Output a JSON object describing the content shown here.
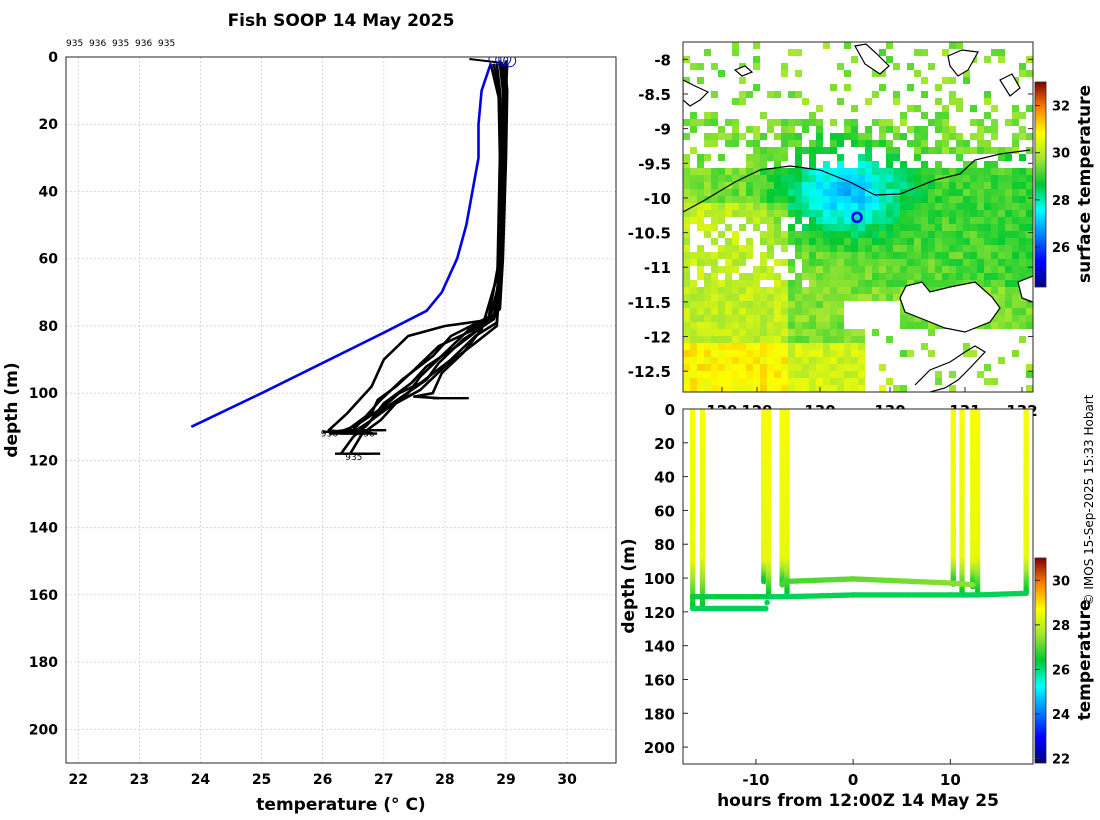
{
  "credit": "© IMOS 15-Sep-2025 15:33 Hobart",
  "chart_data": [
    {
      "id": "profile",
      "type": "line",
      "title": "Fish SOOP 14 May 2025",
      "xlabel": "temperature (° C)",
      "ylabel": "depth (m)",
      "xlim": [
        21.8,
        30.8
      ],
      "ylim": [
        210,
        0
      ],
      "xticks": [
        22,
        23,
        24,
        25,
        26,
        27,
        28,
        29,
        30
      ],
      "yticks": [
        0,
        20,
        40,
        60,
        80,
        100,
        120,
        140,
        160,
        180,
        200
      ],
      "grid": true,
      "top_labels": [
        "935",
        "936",
        "935",
        "936",
        "935"
      ],
      "climatology": {
        "name": "climatology",
        "color": "#0000e6",
        "points": [
          [
            23.85,
            110
          ],
          [
            25.0,
            100
          ],
          [
            26.0,
            91
          ],
          [
            27.0,
            82
          ],
          [
            27.7,
            75.5
          ],
          [
            27.95,
            70
          ],
          [
            28.2,
            60
          ],
          [
            28.35,
            50
          ],
          [
            28.45,
            40
          ],
          [
            28.55,
            30
          ],
          [
            28.55,
            20
          ],
          [
            28.6,
            10
          ],
          [
            28.75,
            2
          ]
        ]
      },
      "profiles": [
        {
          "id": "935",
          "points": [
            [
              28.98,
              2
            ],
            [
              29.02,
              10
            ],
            [
              29.0,
              30
            ],
            [
              28.95,
              60
            ],
            [
              28.9,
              75
            ],
            [
              28.6,
              80
            ],
            [
              27.9,
              86
            ],
            [
              27.5,
              93
            ],
            [
              27.2,
              98
            ],
            [
              26.9,
              102
            ],
            [
              26.8,
              106
            ],
            [
              26.5,
              110
            ],
            [
              26.2,
              112
            ]
          ]
        },
        {
          "id": "936",
          "points": [
            [
              28.95,
              2
            ],
            [
              28.98,
              10
            ],
            [
              28.96,
              30
            ],
            [
              28.92,
              62
            ],
            [
              28.85,
              77
            ],
            [
              28.4,
              81
            ],
            [
              28.0,
              88
            ],
            [
              27.6,
              95
            ],
            [
              27.4,
              100
            ],
            [
              27.1,
              104
            ],
            [
              26.8,
              108
            ],
            [
              26.55,
              111
            ]
          ]
        },
        {
          "id": "935",
          "points": [
            [
              28.9,
              2
            ],
            [
              28.95,
              10
            ],
            [
              28.92,
              30
            ],
            [
              28.9,
              63
            ],
            [
              28.8,
              78
            ],
            [
              28.3,
              84
            ],
            [
              27.9,
              91
            ],
            [
              27.7,
              96
            ],
            [
              27.3,
              101
            ],
            [
              26.9,
              106
            ],
            [
              26.7,
              110
            ],
            [
              26.4,
              112
            ]
          ]
        },
        {
          "id": "936",
          "points": [
            [
              28.85,
              2
            ],
            [
              28.9,
              10
            ],
            [
              28.9,
              30
            ],
            [
              28.88,
              61
            ],
            [
              28.7,
              79
            ],
            [
              28.2,
              86
            ],
            [
              27.7,
              92
            ],
            [
              27.45,
              97
            ],
            [
              27.0,
              103
            ],
            [
              26.75,
              109
            ],
            [
              26.5,
              113
            ],
            [
              26.3,
              118
            ]
          ]
        },
        {
          "id": "935",
          "points": [
            [
              28.8,
              2
            ],
            [
              28.9,
              12
            ],
            [
              28.92,
              30
            ],
            [
              28.9,
              64
            ],
            [
              28.85,
              80
            ],
            [
              28.5,
              85
            ],
            [
              28.0,
              92
            ],
            [
              27.6,
              99
            ],
            [
              27.2,
              103
            ],
            [
              26.95,
              108
            ],
            [
              26.65,
              112
            ],
            [
              26.45,
              118
            ]
          ]
        },
        {
          "id": "936",
          "points": [
            [
              29.02,
              2
            ],
            [
              29.0,
              10
            ],
            [
              28.95,
              40
            ],
            [
              28.9,
              66
            ],
            [
              28.75,
              77
            ],
            [
              28.1,
              83
            ],
            [
              27.8,
              89
            ],
            [
              27.3,
              96
            ],
            [
              26.95,
              102
            ],
            [
              26.7,
              107
            ],
            [
              26.4,
              111
            ],
            [
              26.1,
              111.5
            ]
          ]
        },
        {
          "id": "935",
          "points": [
            [
              28.75,
              2
            ],
            [
              28.88,
              12
            ],
            [
              28.9,
              30
            ],
            [
              28.86,
              65
            ],
            [
              28.6,
              81
            ],
            [
              28.3,
              88
            ],
            [
              27.95,
              94
            ],
            [
              27.8,
              100
            ],
            [
              27.5,
              101
            ],
            [
              27.9,
              101.5
            ]
          ]
        },
        {
          "id": "936",
          "points": [
            [
              28.9,
              1
            ],
            [
              28.96,
              8
            ],
            [
              28.95,
              35
            ],
            [
              28.9,
              62
            ],
            [
              28.8,
              78
            ],
            [
              28.0,
              80
            ],
            [
              27.4,
              83
            ],
            [
              27.0,
              90
            ],
            [
              26.8,
              98
            ],
            [
              26.4,
              106
            ],
            [
              26.1,
              111
            ],
            [
              26.3,
              111.5
            ]
          ]
        },
        {
          "id": "935",
          "points": [
            [
              29.0,
              1
            ],
            [
              29.0,
              15
            ],
            [
              28.95,
              45
            ],
            [
              28.9,
              68
            ],
            [
              28.85,
              79
            ],
            [
              28.5,
              83
            ],
            [
              28.1,
              90
            ],
            [
              27.6,
              97
            ],
            [
              27.25,
              100
            ],
            [
              27.0,
              104
            ],
            [
              26.6,
              109
            ],
            [
              26.5,
              111
            ]
          ]
        }
      ],
      "bottom_labels": [
        {
          "text": "936",
          "t": 26.1,
          "d": 112
        },
        {
          "text": "936",
          "t": 26.7,
          "d": 112
        },
        {
          "text": "935",
          "t": 26.5,
          "d": 119
        }
      ],
      "surface_markers": [
        [
          28.82,
          0.8
        ],
        [
          28.93,
          0.9
        ],
        [
          28.98,
          0.5
        ],
        [
          29.06,
          1.1
        ]
      ]
    },
    {
      "id": "map",
      "type": "heatmap",
      "ylim": [
        -12.8,
        -7.75
      ],
      "yticks": [
        -8,
        -8.5,
        -9,
        -9.5,
        -10,
        -10.5,
        -11,
        -11.5,
        -12,
        -12.5
      ],
      "xtick_labels": [
        "129",
        "129",
        "130",
        "130",
        "131",
        "132"
      ],
      "colorbar": {
        "label": "surface temperature",
        "min": 24.3,
        "max": 33.0,
        "ticks": [
          26,
          28,
          30,
          32
        ]
      },
      "marker": {
        "lat": -10.28,
        "lon": 130.25
      }
    },
    {
      "id": "section",
      "type": "scatter",
      "xlabel": "hours from 12:00Z 14 May 25",
      "ylabel": "depth (m)",
      "xlim": [
        -17.5,
        18.5
      ],
      "ylim": [
        210,
        0
      ],
      "xticks": [
        -10,
        0,
        10
      ],
      "yticks": [
        0,
        20,
        40,
        60,
        80,
        100,
        120,
        140,
        160,
        180,
        200
      ],
      "colorbar": {
        "label": "temperature",
        "min": 21.8,
        "max": 31.0,
        "ticks": [
          22,
          24,
          26,
          28,
          30
        ]
      },
      "casts": [
        {
          "x": -16.5,
          "bottom": 118,
          "thermocline": 90
        },
        {
          "x": -15.5,
          "bottom": 118,
          "thermocline": 88
        },
        {
          "x": -9.2,
          "bottom": 102,
          "thermocline": 90
        },
        {
          "x": -8.7,
          "bottom": 111,
          "thermocline": 90
        },
        {
          "x": -7.3,
          "bottom": 104,
          "thermocline": 89
        },
        {
          "x": -6.8,
          "bottom": 110,
          "thermocline": 88
        },
        {
          "x": 10.3,
          "bottom": 104,
          "thermocline": 88
        },
        {
          "x": 11.2,
          "bottom": 110,
          "thermocline": 89
        },
        {
          "x": 12.3,
          "bottom": 105,
          "thermocline": 90
        },
        {
          "x": 12.8,
          "bottom": 110,
          "thermocline": 88
        },
        {
          "x": 17.8,
          "bottom": 109,
          "thermocline": 88
        }
      ],
      "tracks": [
        {
          "name": "lower",
          "points": [
            [
              -16.5,
              118
            ],
            [
              -9.0,
              118
            ],
            [
              -8.7,
              111
            ],
            [
              -6.8,
              111
            ],
            [
              0,
              110
            ],
            [
              10,
              110
            ],
            [
              12.8,
              110
            ],
            [
              17.8,
              109
            ]
          ],
          "start_temp": 26.2,
          "end_temp": 26.2
        },
        {
          "name": "lower2",
          "points": [
            [
              -16.5,
              111
            ],
            [
              -9.0,
              111
            ]
          ],
          "start_temp": 26.3,
          "end_temp": 26.3
        },
        {
          "name": "upper",
          "points": [
            [
              -7.3,
              104
            ],
            [
              -7.0,
              102
            ],
            [
              0,
              100.5
            ],
            [
              10.3,
              103
            ],
            [
              12.3,
              104
            ]
          ],
          "start_temp": 26.9,
          "end_temp": 27.4
        }
      ]
    }
  ]
}
